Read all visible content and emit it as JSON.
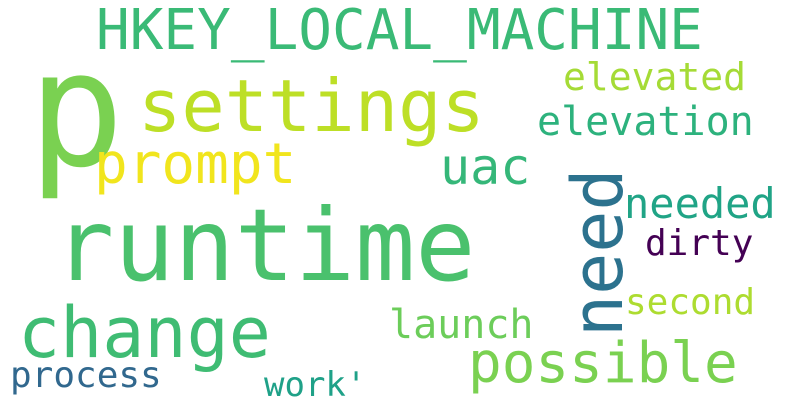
{
  "words": {
    "p": {
      "text": "p",
      "color": "#7ad151"
    },
    "hkey": {
      "text": "HKEY_LOCAL_MACHINE",
      "color": "#3aba76"
    },
    "settings": {
      "text": "settings",
      "color": "#bddf26"
    },
    "elevated": {
      "text": "elevated",
      "color": "#a5db36"
    },
    "elevation": {
      "text": "elevation",
      "color": "#2db27d"
    },
    "prompt": {
      "text": "prompt",
      "color": "#f1e51d"
    },
    "uac": {
      "text": "uac",
      "color": "#35b779"
    },
    "need": {
      "text": "need",
      "color": "#2c728e"
    },
    "needed": {
      "text": "needed",
      "color": "#20a486"
    },
    "runtime": {
      "text": "runtime",
      "color": "#4ac16d"
    },
    "dirty": {
      "text": "dirty",
      "color": "#440154"
    },
    "change": {
      "text": "change",
      "color": "#3fbc73"
    },
    "second": {
      "text": "second",
      "color": "#addc30"
    },
    "launch": {
      "text": "launch",
      "color": "#6ccd5a"
    },
    "possible": {
      "text": "possible",
      "color": "#7ad151"
    },
    "process": {
      "text": "process",
      "color": "#31688e"
    },
    "work": {
      "text": "work'",
      "color": "#1fa188"
    }
  }
}
